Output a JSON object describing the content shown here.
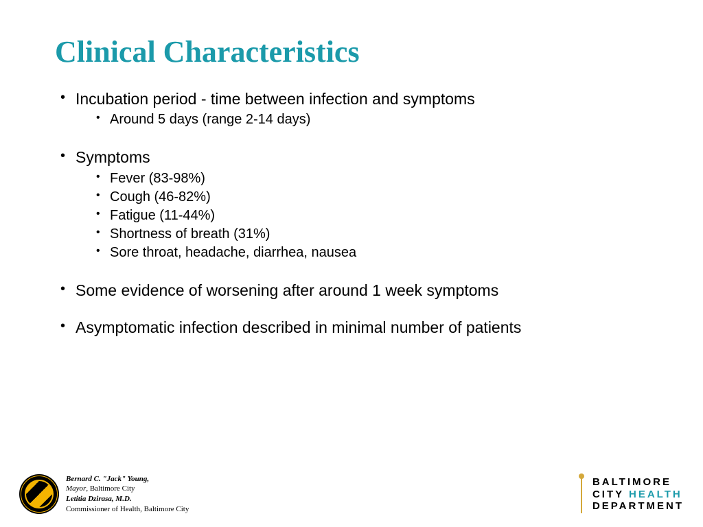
{
  "title": "Clinical Characteristics",
  "title_color": "#1b9aaa",
  "bullets": [
    {
      "text": "Incubation period - time between infection and symptoms",
      "sub": [
        "Around 5 days (range 2-14 days)"
      ]
    },
    {
      "text": "Symptoms",
      "sub": [
        "Fever (83-98%)",
        "Cough (46-82%)",
        "Fatigue (11-44%)",
        "Shortness of breath (31%)",
        "Sore throat, headache, diarrhea, nausea"
      ]
    },
    {
      "text": "Some evidence of worsening after around 1 week symptoms",
      "sub": []
    },
    {
      "text": "Asymptomatic infection described in minimal number of patients",
      "sub": []
    }
  ],
  "footer": {
    "name1": "Bernard C. \"Jack\" Young,",
    "role1": "Mayor",
    "city1": ", Baltimore City",
    "name2": "Letitia Dzirasa, M.D.",
    "role2": "Commissioner of Health, Baltimore City"
  },
  "logo": {
    "line1": "BALTIMORE",
    "line2a": "CITY ",
    "line2b": "HEALTH",
    "line3": "DEPARTMENT",
    "health_color": "#1b9aaa"
  }
}
